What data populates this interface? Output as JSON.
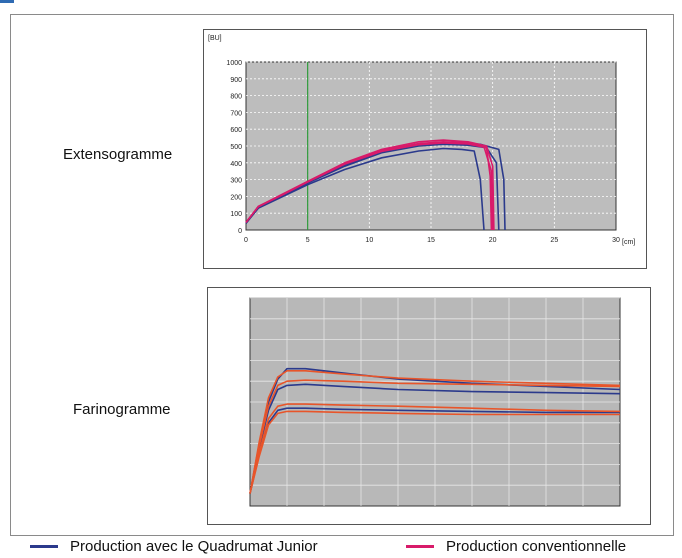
{
  "chart_data": [
    {
      "type": "line",
      "name_label": "Extensogramme",
      "ylabel": "[BU]",
      "xlabel": "[cm]",
      "title": "",
      "xlim": [
        0,
        30
      ],
      "ylim": [
        0,
        1000
      ],
      "x_ticks": [
        0,
        5,
        10,
        15,
        20,
        25,
        30
      ],
      "y_ticks": [
        0,
        100,
        200,
        300,
        400,
        500,
        600,
        700,
        800,
        900,
        1000
      ],
      "grid": true,
      "reference_line_x": 5,
      "series": [
        {
          "group": "quadrumat",
          "color": "#2b3a8c",
          "points": [
            [
              0,
              40
            ],
            [
              1,
              130
            ],
            [
              3,
              200
            ],
            [
              5,
              270
            ],
            [
              8,
              360
            ],
            [
              11,
              430
            ],
            [
              14,
              470
            ],
            [
              16,
              485
            ],
            [
              17.5,
              480
            ],
            [
              18.5,
              470
            ],
            [
              19,
              300
            ],
            [
              19.3,
              0
            ]
          ]
        },
        {
          "group": "quadrumat",
          "color": "#2b3a8c",
          "points": [
            [
              0,
              40
            ],
            [
              1,
              135
            ],
            [
              3,
              205
            ],
            [
              5,
              280
            ],
            [
              8,
              380
            ],
            [
              11,
              460
            ],
            [
              14,
              500
            ],
            [
              16,
              510
            ],
            [
              18,
              505
            ],
            [
              19.5,
              490
            ],
            [
              20.3,
              400
            ],
            [
              20.5,
              0
            ]
          ]
        },
        {
          "group": "quadrumat",
          "color": "#2b3a8c",
          "points": [
            [
              0,
              40
            ],
            [
              1,
              140
            ],
            [
              3,
              210
            ],
            [
              5,
              285
            ],
            [
              8,
              385
            ],
            [
              11,
              470
            ],
            [
              14,
              510
            ],
            [
              17,
              520
            ],
            [
              19,
              510
            ],
            [
              20.5,
              480
            ],
            [
              20.9,
              300
            ],
            [
              21,
              0
            ]
          ]
        },
        {
          "group": "conventionnelle",
          "color": "#d81b6a",
          "points": [
            [
              0,
              45
            ],
            [
              1,
              140
            ],
            [
              3,
              215
            ],
            [
              5,
              290
            ],
            [
              8,
              400
            ],
            [
              11,
              480
            ],
            [
              14,
              525
            ],
            [
              16,
              535
            ],
            [
              18,
              525
            ],
            [
              19.5,
              500
            ],
            [
              20,
              380
            ],
            [
              20.1,
              0
            ]
          ]
        },
        {
          "group": "conventionnelle",
          "color": "#d81b6a",
          "points": [
            [
              0,
              45
            ],
            [
              1,
              140
            ],
            [
              3,
              212
            ],
            [
              5,
              288
            ],
            [
              8,
              395
            ],
            [
              11,
              475
            ],
            [
              14,
              515
            ],
            [
              16,
              525
            ],
            [
              18,
              518
            ],
            [
              19.3,
              495
            ],
            [
              19.9,
              350
            ],
            [
              20,
              0
            ]
          ]
        },
        {
          "group": "conventionnelle",
          "color": "#d81b6a",
          "points": [
            [
              0,
              45
            ],
            [
              1,
              138
            ],
            [
              3,
              210
            ],
            [
              5,
              286
            ],
            [
              8,
              392
            ],
            [
              11,
              468
            ],
            [
              14,
              508
            ],
            [
              16,
              518
            ],
            [
              18,
              512
            ],
            [
              19.5,
              490
            ],
            [
              19.8,
              320
            ],
            [
              19.9,
              0
            ]
          ]
        }
      ]
    },
    {
      "type": "line",
      "name_label": "Farinogramme",
      "title": "",
      "xlabel": "",
      "ylabel": "",
      "xlim": [
        0,
        20
      ],
      "ylim": [
        0,
        1000
      ],
      "x_ticks": [
        0,
        2,
        4,
        6,
        8,
        10,
        12,
        14,
        16,
        18,
        20
      ],
      "y_ticks": [
        0,
        100,
        200,
        300,
        400,
        500,
        600,
        700,
        800,
        900,
        1000
      ],
      "grid": true,
      "series": [
        {
          "group": "quadrumat",
          "color": "#2b3a8c",
          "points": [
            [
              0,
              60
            ],
            [
              0.5,
              300
            ],
            [
              1,
              500
            ],
            [
              1.5,
              610
            ],
            [
              2,
              660
            ],
            [
              3,
              660
            ],
            [
              5,
              640
            ],
            [
              8,
              610
            ],
            [
              12,
              590
            ],
            [
              16,
              575
            ],
            [
              20,
              560
            ]
          ]
        },
        {
          "group": "quadrumat",
          "color": "#2b3a8c",
          "points": [
            [
              0,
              60
            ],
            [
              0.5,
              280
            ],
            [
              1,
              460
            ],
            [
              1.5,
              560
            ],
            [
              2,
              580
            ],
            [
              3,
              585
            ],
            [
              5,
              575
            ],
            [
              8,
              560
            ],
            [
              12,
              550
            ],
            [
              16,
              545
            ],
            [
              20,
              540
            ]
          ]
        },
        {
          "group": "quadrumat",
          "color": "#2b3a8c",
          "points": [
            [
              0,
              60
            ],
            [
              0.5,
              250
            ],
            [
              1,
              400
            ],
            [
              1.5,
              460
            ],
            [
              2,
              470
            ],
            [
              3,
              470
            ],
            [
              5,
              465
            ],
            [
              8,
              460
            ],
            [
              12,
              455
            ],
            [
              16,
              450
            ],
            [
              20,
              450
            ]
          ]
        },
        {
          "group": "conventionnelle",
          "color": "#e8552a",
          "points": [
            [
              0,
              60
            ],
            [
              0.5,
              310
            ],
            [
              1,
              520
            ],
            [
              1.5,
              620
            ],
            [
              2,
              650
            ],
            [
              3,
              650
            ],
            [
              5,
              635
            ],
            [
              8,
              615
            ],
            [
              12,
              600
            ],
            [
              16,
              590
            ],
            [
              20,
              580
            ]
          ]
        },
        {
          "group": "conventionnelle",
          "color": "#e8552a",
          "points": [
            [
              0,
              60
            ],
            [
              0.5,
              290
            ],
            [
              1,
              480
            ],
            [
              1.5,
              580
            ],
            [
              2,
              600
            ],
            [
              3,
              605
            ],
            [
              5,
              600
            ],
            [
              8,
              590
            ],
            [
              12,
              585
            ],
            [
              16,
              580
            ],
            [
              20,
              575
            ]
          ]
        },
        {
          "group": "conventionnelle",
          "color": "#e8552a",
          "points": [
            [
              0,
              60
            ],
            [
              0.5,
              260
            ],
            [
              1,
              420
            ],
            [
              1.5,
              480
            ],
            [
              2,
              490
            ],
            [
              3,
              490
            ],
            [
              5,
              485
            ],
            [
              8,
              480
            ],
            [
              12,
              470
            ],
            [
              16,
              460
            ],
            [
              20,
              455
            ]
          ]
        },
        {
          "group": "conventionnelle",
          "color": "#e8552a",
          "points": [
            [
              0,
              60
            ],
            [
              0.5,
              240
            ],
            [
              1,
              390
            ],
            [
              1.5,
              445
            ],
            [
              2,
              455
            ],
            [
              3,
              455
            ],
            [
              5,
              450
            ],
            [
              8,
              445
            ],
            [
              12,
              440
            ],
            [
              16,
              440
            ],
            [
              20,
              440
            ]
          ]
        }
      ]
    }
  ],
  "legend": [
    {
      "label": "Production avec le Quadrumat Junior",
      "color": "#2b3a8c"
    },
    {
      "label": "Production conventionnelle",
      "color": "#d81b6a"
    }
  ]
}
